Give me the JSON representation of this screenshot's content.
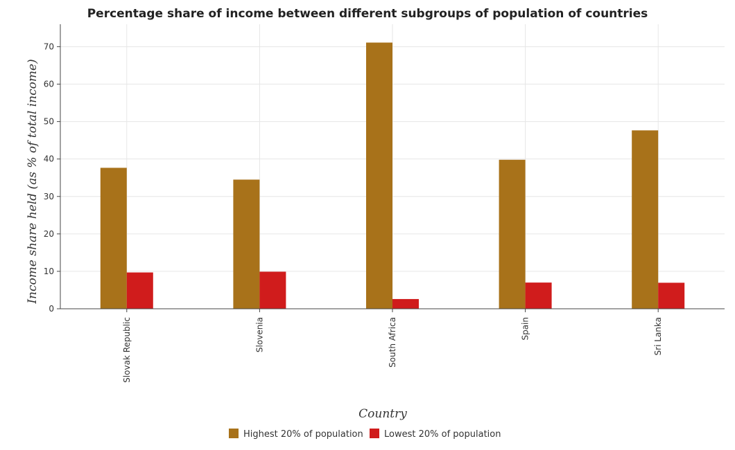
{
  "chart_data": {
    "type": "bar",
    "title": "Percentage share of income between different subgroups of population of countries",
    "xlabel": "Country",
    "ylabel": "Income share held (as % of total income)",
    "categories": [
      "Slovak Republic",
      "Slovenia",
      "South Africa",
      "Spain",
      "Sri Lanka"
    ],
    "series": [
      {
        "name": "Highest 20% of population",
        "color": "#a8721a",
        "values": [
          37.65,
          34.5,
          71.1,
          39.8,
          47.65
        ]
      },
      {
        "name": "Lowest 20% of population",
        "color": "#d01c1c",
        "values": [
          9.7,
          9.9,
          2.6,
          7.0,
          6.95
        ]
      }
    ],
    "ylim": [
      0,
      76
    ],
    "yticks": [
      0,
      10,
      20,
      30,
      40,
      50,
      60,
      70
    ],
    "grid": true,
    "legend_position": "bottom-center"
  }
}
